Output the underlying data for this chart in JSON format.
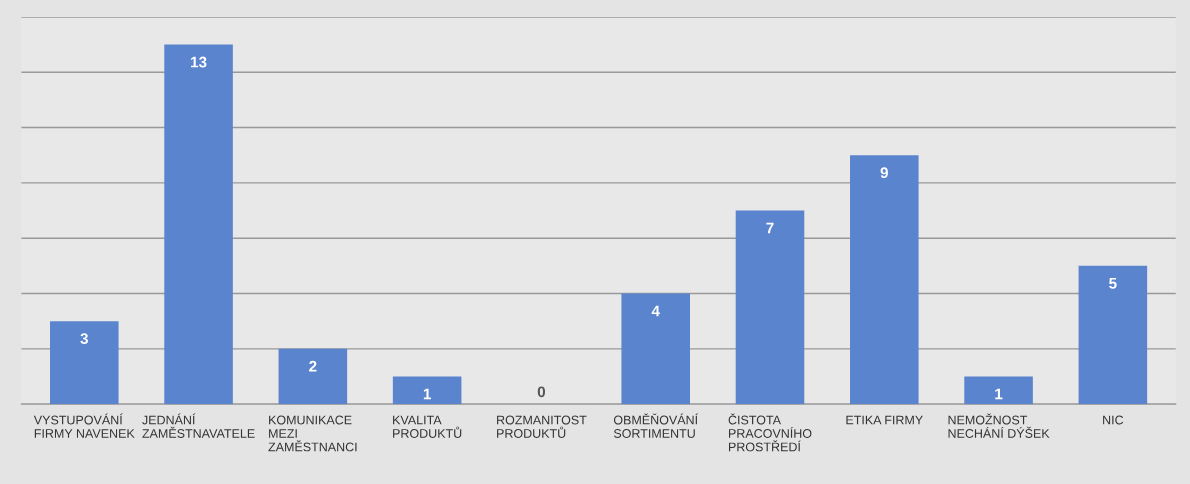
{
  "chart_data": {
    "type": "bar",
    "categories": [
      "VYSTUPOVÁNÍ\nFIRMY NAVENEK",
      "JEDNÁNÍ\nZAMĚSTNAVATELE",
      "KOMUNIKACE\nMEZI\nZAMĚSTNANCI",
      "KVALITA\nPRODUKTŮ",
      "ROZMANITOST\nPRODUKTŮ",
      "OBMĚŇOVÁNÍ\nSORTIMENTU",
      "ČISTOTA\nPRACOVNÍHO\nPROSTŘEDÍ",
      "ETIKA FIRMY",
      "NEMOŽNOST\nNECHÁNÍ DÝŠEK",
      "NIC"
    ],
    "values": [
      3,
      13,
      2,
      1,
      0,
      4,
      7,
      9,
      1,
      5
    ],
    "color": "#5b84cf",
    "ylim": [
      0,
      14
    ],
    "yticks": [
      {
        "value": 0,
        "label": null
      },
      {
        "value": 2,
        "label": null
      },
      {
        "value": 4,
        "label": null
      },
      {
        "value": 6,
        "label": null
      },
      {
        "value": 8,
        "label": null
      },
      {
        "value": 10,
        "label": null
      },
      {
        "value": 12,
        "label": null
      },
      {
        "value": 14,
        "label": null
      }
    ],
    "grid": "y",
    "data_labels": true
  }
}
